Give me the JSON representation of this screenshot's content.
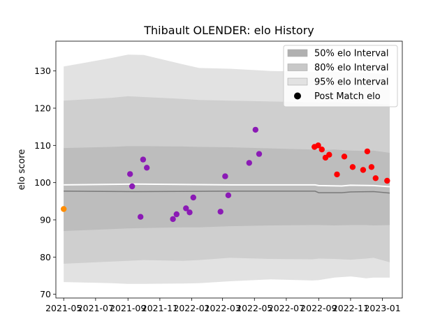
{
  "chart_data": {
    "type": "scatter",
    "title": "Thibault OLENDER: elo History",
    "xlabel": "",
    "ylabel": "elo score",
    "xlim": [
      "2021-04-16",
      "2023-02-08"
    ],
    "ylim": [
      69,
      138
    ],
    "x_ticks": [
      "2021-05",
      "2021-07",
      "2021-09",
      "2021-11",
      "2022-01",
      "2022-03",
      "2022-05",
      "2022-07",
      "2022-09",
      "2022-11",
      "2023-01"
    ],
    "y_ticks": [
      70,
      80,
      90,
      100,
      110,
      120,
      130
    ],
    "grid": false,
    "legend_position": "upper right",
    "legend": [
      {
        "label": "50% elo Interval",
        "color": "#b0b0b0"
      },
      {
        "label": "80% elo Interval",
        "color": "#c8c8c8"
      },
      {
        "label": "95% elo Interval",
        "color": "#e2e2e2"
      },
      {
        "label": "Post Match elo",
        "color": "#000000"
      }
    ],
    "bands": {
      "x": [
        "2021-05-01",
        "2021-08-01",
        "2021-09-01",
        "2021-10-01",
        "2021-12-15",
        "2022-01-15",
        "2022-03-15",
        "2022-06-01",
        "2022-08-20",
        "2022-09-01",
        "2022-10-01",
        "2022-11-01",
        "2022-12-01",
        "2022-12-15",
        "2023-01-15"
      ],
      "p95_upper": [
        131.2,
        133.5,
        134.4,
        134.3,
        131.8,
        130.8,
        130.6,
        130.0,
        129.8,
        129.6,
        129.8,
        129.6,
        129.5,
        129.4,
        129.0
      ],
      "p80_upper": [
        122.0,
        122.8,
        123.2,
        123.0,
        122.5,
        122.2,
        122.0,
        121.8,
        121.6,
        121.5,
        121.6,
        121.4,
        121.3,
        121.2,
        121.0
      ],
      "p50_upper": [
        109.3,
        109.6,
        109.8,
        109.8,
        109.7,
        109.6,
        109.5,
        109.2,
        108.9,
        108.7,
        108.9,
        108.6,
        108.5,
        108.6,
        108.0
      ],
      "p50_lower": [
        87.0,
        87.5,
        87.7,
        87.8,
        88.0,
        88.0,
        88.3,
        88.5,
        88.6,
        88.6,
        88.5,
        88.6,
        88.6,
        88.5,
        88.6
      ],
      "p80_lower": [
        78.2,
        78.8,
        79.0,
        79.2,
        79.0,
        79.2,
        79.8,
        79.5,
        79.4,
        79.6,
        79.5,
        79.3,
        79.6,
        79.8,
        78.6
      ],
      "p95_lower": [
        73.3,
        73.0,
        72.8,
        72.8,
        72.9,
        73.0,
        73.5,
        74.0,
        73.7,
        73.8,
        74.5,
        74.8,
        74.3,
        74.5,
        74.5
      ]
    },
    "mean_line": {
      "x": [
        "2021-05-01",
        "2021-09-15",
        "2022-03-15",
        "2022-08-25",
        "2022-09-01",
        "2022-10-15",
        "2022-11-01",
        "2022-12-15",
        "2023-01-15"
      ],
      "y": [
        99.4,
        99.6,
        99.4,
        99.4,
        99.2,
        99.1,
        99.3,
        99.2,
        98.9
      ]
    },
    "median_line": {
      "x": [
        "2021-05-01",
        "2021-09-15",
        "2022-03-15",
        "2022-08-25",
        "2022-09-01",
        "2022-10-15",
        "2022-11-01",
        "2022-12-15",
        "2023-01-15"
      ],
      "y": [
        97.7,
        97.6,
        97.7,
        97.7,
        97.3,
        97.3,
        97.5,
        97.6,
        97.2
      ]
    },
    "series": [
      {
        "color": "#ff8c00",
        "points": [
          {
            "x": "2021-05-01",
            "y": 92.9
          }
        ]
      },
      {
        "color": "#8b1ab5",
        "points": [
          {
            "x": "2021-09-05",
            "y": 102.3
          },
          {
            "x": "2021-09-09",
            "y": 99.0
          },
          {
            "x": "2021-09-25",
            "y": 90.8
          },
          {
            "x": "2021-09-30",
            "y": 106.2
          },
          {
            "x": "2021-10-07",
            "y": 104.0
          },
          {
            "x": "2021-11-26",
            "y": 90.2
          },
          {
            "x": "2021-12-03",
            "y": 91.5
          },
          {
            "x": "2021-12-21",
            "y": 93.1
          },
          {
            "x": "2021-12-28",
            "y": 92.0
          },
          {
            "x": "2022-01-04",
            "y": 96.0
          },
          {
            "x": "2022-02-25",
            "y": 92.2
          },
          {
            "x": "2022-03-06",
            "y": 101.7
          },
          {
            "x": "2022-03-12",
            "y": 96.6
          },
          {
            "x": "2022-04-21",
            "y": 105.3
          },
          {
            "x": "2022-05-03",
            "y": 114.2
          },
          {
            "x": "2022-05-10",
            "y": 107.7
          }
        ]
      },
      {
        "color": "#ff0000",
        "points": [
          {
            "x": "2022-08-24",
            "y": 109.6
          },
          {
            "x": "2022-08-31",
            "y": 110.0
          },
          {
            "x": "2022-09-07",
            "y": 108.9
          },
          {
            "x": "2022-09-14",
            "y": 106.7
          },
          {
            "x": "2022-09-21",
            "y": 107.5
          },
          {
            "x": "2022-10-06",
            "y": 102.2
          },
          {
            "x": "2022-10-20",
            "y": 107.0
          },
          {
            "x": "2022-11-05",
            "y": 104.2
          },
          {
            "x": "2022-11-25",
            "y": 103.4
          },
          {
            "x": "2022-12-03",
            "y": 108.4
          },
          {
            "x": "2022-12-11",
            "y": 104.2
          },
          {
            "x": "2022-12-19",
            "y": 101.2
          },
          {
            "x": "2023-01-10",
            "y": 100.5
          }
        ]
      }
    ]
  }
}
